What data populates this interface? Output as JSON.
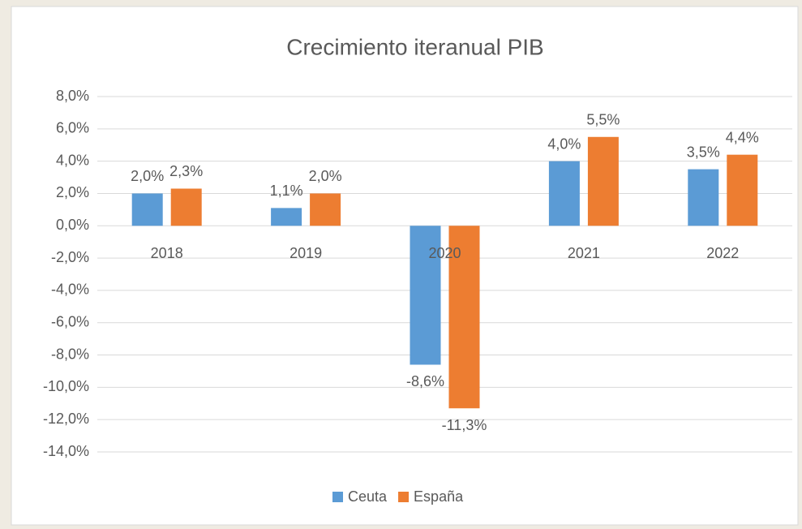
{
  "chart_data": {
    "type": "bar",
    "title": "Crecimiento iteranual PIB",
    "categories": [
      "2018",
      "2019",
      "2020",
      "2021",
      "2022"
    ],
    "series": [
      {
        "name": "Ceuta",
        "color": "#5b9bd5",
        "values": [
          2.0,
          1.1,
          -8.6,
          4.0,
          3.5
        ],
        "value_labels": [
          "2,0%",
          "1,1%",
          "-8,6%",
          "4,0%",
          "3,5%"
        ]
      },
      {
        "name": "España",
        "color": "#ed7d31",
        "values": [
          2.3,
          2.0,
          -11.3,
          5.5,
          4.4
        ],
        "value_labels": [
          "2,3%",
          "2,0%",
          "-11,3%",
          "5,5%",
          "4,4%"
        ]
      }
    ],
    "ylim": [
      -14,
      8
    ],
    "yticks": [
      {
        "value": 8,
        "label": "8,0%"
      },
      {
        "value": 6,
        "label": "6,0%"
      },
      {
        "value": 4,
        "label": "4,0%"
      },
      {
        "value": 2,
        "label": "2,0%"
      },
      {
        "value": 0,
        "label": "0,0%"
      },
      {
        "value": -2,
        "label": "-2,0%"
      },
      {
        "value": -4,
        "label": "-4,0%"
      },
      {
        "value": -6,
        "label": "-6,0%"
      },
      {
        "value": -8,
        "label": "-8,0%"
      },
      {
        "value": -10,
        "label": "-10,0%"
      },
      {
        "value": -12,
        "label": "-12,0%"
      },
      {
        "value": -14,
        "label": "-14,0%"
      }
    ],
    "grid": true,
    "legend": "bottom"
  }
}
